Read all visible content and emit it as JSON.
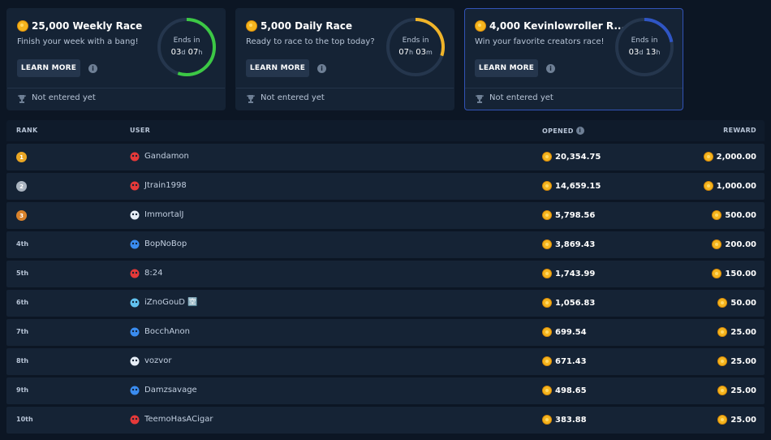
{
  "colors": {
    "accent": "#f5b51e",
    "green": "#3cc845",
    "yellow": "#f0b429",
    "blue": "#2f55c4",
    "card_bg": "#152335",
    "page_bg": "#0c1624"
  },
  "races": [
    {
      "title": "25,000 Weekly Race",
      "subtitle": "Finish your week with a bang!",
      "button": "LEARN MORE",
      "ends_label": "Ends in",
      "time_a": "03",
      "unit_a": "d",
      "time_b": "07",
      "unit_b": "h",
      "progress": 0.55,
      "ring_color": "#3cc845",
      "status": "Not entered yet"
    },
    {
      "title": "5,000 Daily Race",
      "subtitle": "Ready to race to the top today?",
      "button": "LEARN MORE",
      "ends_label": "Ends in",
      "time_a": "07",
      "unit_a": "h",
      "time_b": "03",
      "unit_b": "m",
      "progress": 0.3,
      "ring_color": "#f0b429",
      "status": "Not entered yet"
    },
    {
      "title": "4,000 Kevinlowroller R...",
      "subtitle": "Win your favorite creators race!",
      "button": "LEARN MORE",
      "ends_label": "Ends in",
      "time_a": "03",
      "unit_a": "d",
      "time_b": "13",
      "unit_b": "h",
      "progress": 0.22,
      "ring_color": "#2f55c4",
      "status": "Not entered yet"
    }
  ],
  "table": {
    "headers": {
      "rank": "RANK",
      "user": "USER",
      "opened": "OPENED",
      "reward": "REWARD"
    },
    "rows": [
      {
        "rank": "1",
        "medal": "#e9a624",
        "user": "Gandamon",
        "avatar": "#e53939",
        "opened": "20,354.75",
        "reward": "2,000.00"
      },
      {
        "rank": "2",
        "medal": "#aab4c0",
        "user": "Jtrain1998",
        "avatar": "#e53939",
        "opened": "14,659.15",
        "reward": "1,000.00"
      },
      {
        "rank": "3",
        "medal": "#d9822b",
        "user": "ImmortalJ",
        "avatar": "#e6edf6",
        "opened": "5,798.56",
        "reward": "500.00"
      },
      {
        "rank": "4th",
        "user": "BopNoBop",
        "avatar": "#3a8cf0",
        "opened": "3,869.43",
        "reward": "200.00"
      },
      {
        "rank": "5th",
        "user": "8:24",
        "avatar": "#e53939",
        "opened": "1,743.99",
        "reward": "150.00"
      },
      {
        "rank": "6th",
        "user": "iZnoGouD 🈳",
        "avatar": "#62c3f0",
        "opened": "1,056.83",
        "reward": "50.00"
      },
      {
        "rank": "7th",
        "user": "BocchAnon",
        "avatar": "#3a8cf0",
        "opened": "699.54",
        "reward": "25.00"
      },
      {
        "rank": "8th",
        "user": "vozvor",
        "avatar": "#e6edf6",
        "opened": "671.43",
        "reward": "25.00"
      },
      {
        "rank": "9th",
        "user": "Damzsavage",
        "avatar": "#3a8cf0",
        "opened": "498.65",
        "reward": "25.00"
      },
      {
        "rank": "10th",
        "user": "TeemoHasACigar",
        "avatar": "#e53939",
        "opened": "383.88",
        "reward": "25.00"
      }
    ]
  }
}
